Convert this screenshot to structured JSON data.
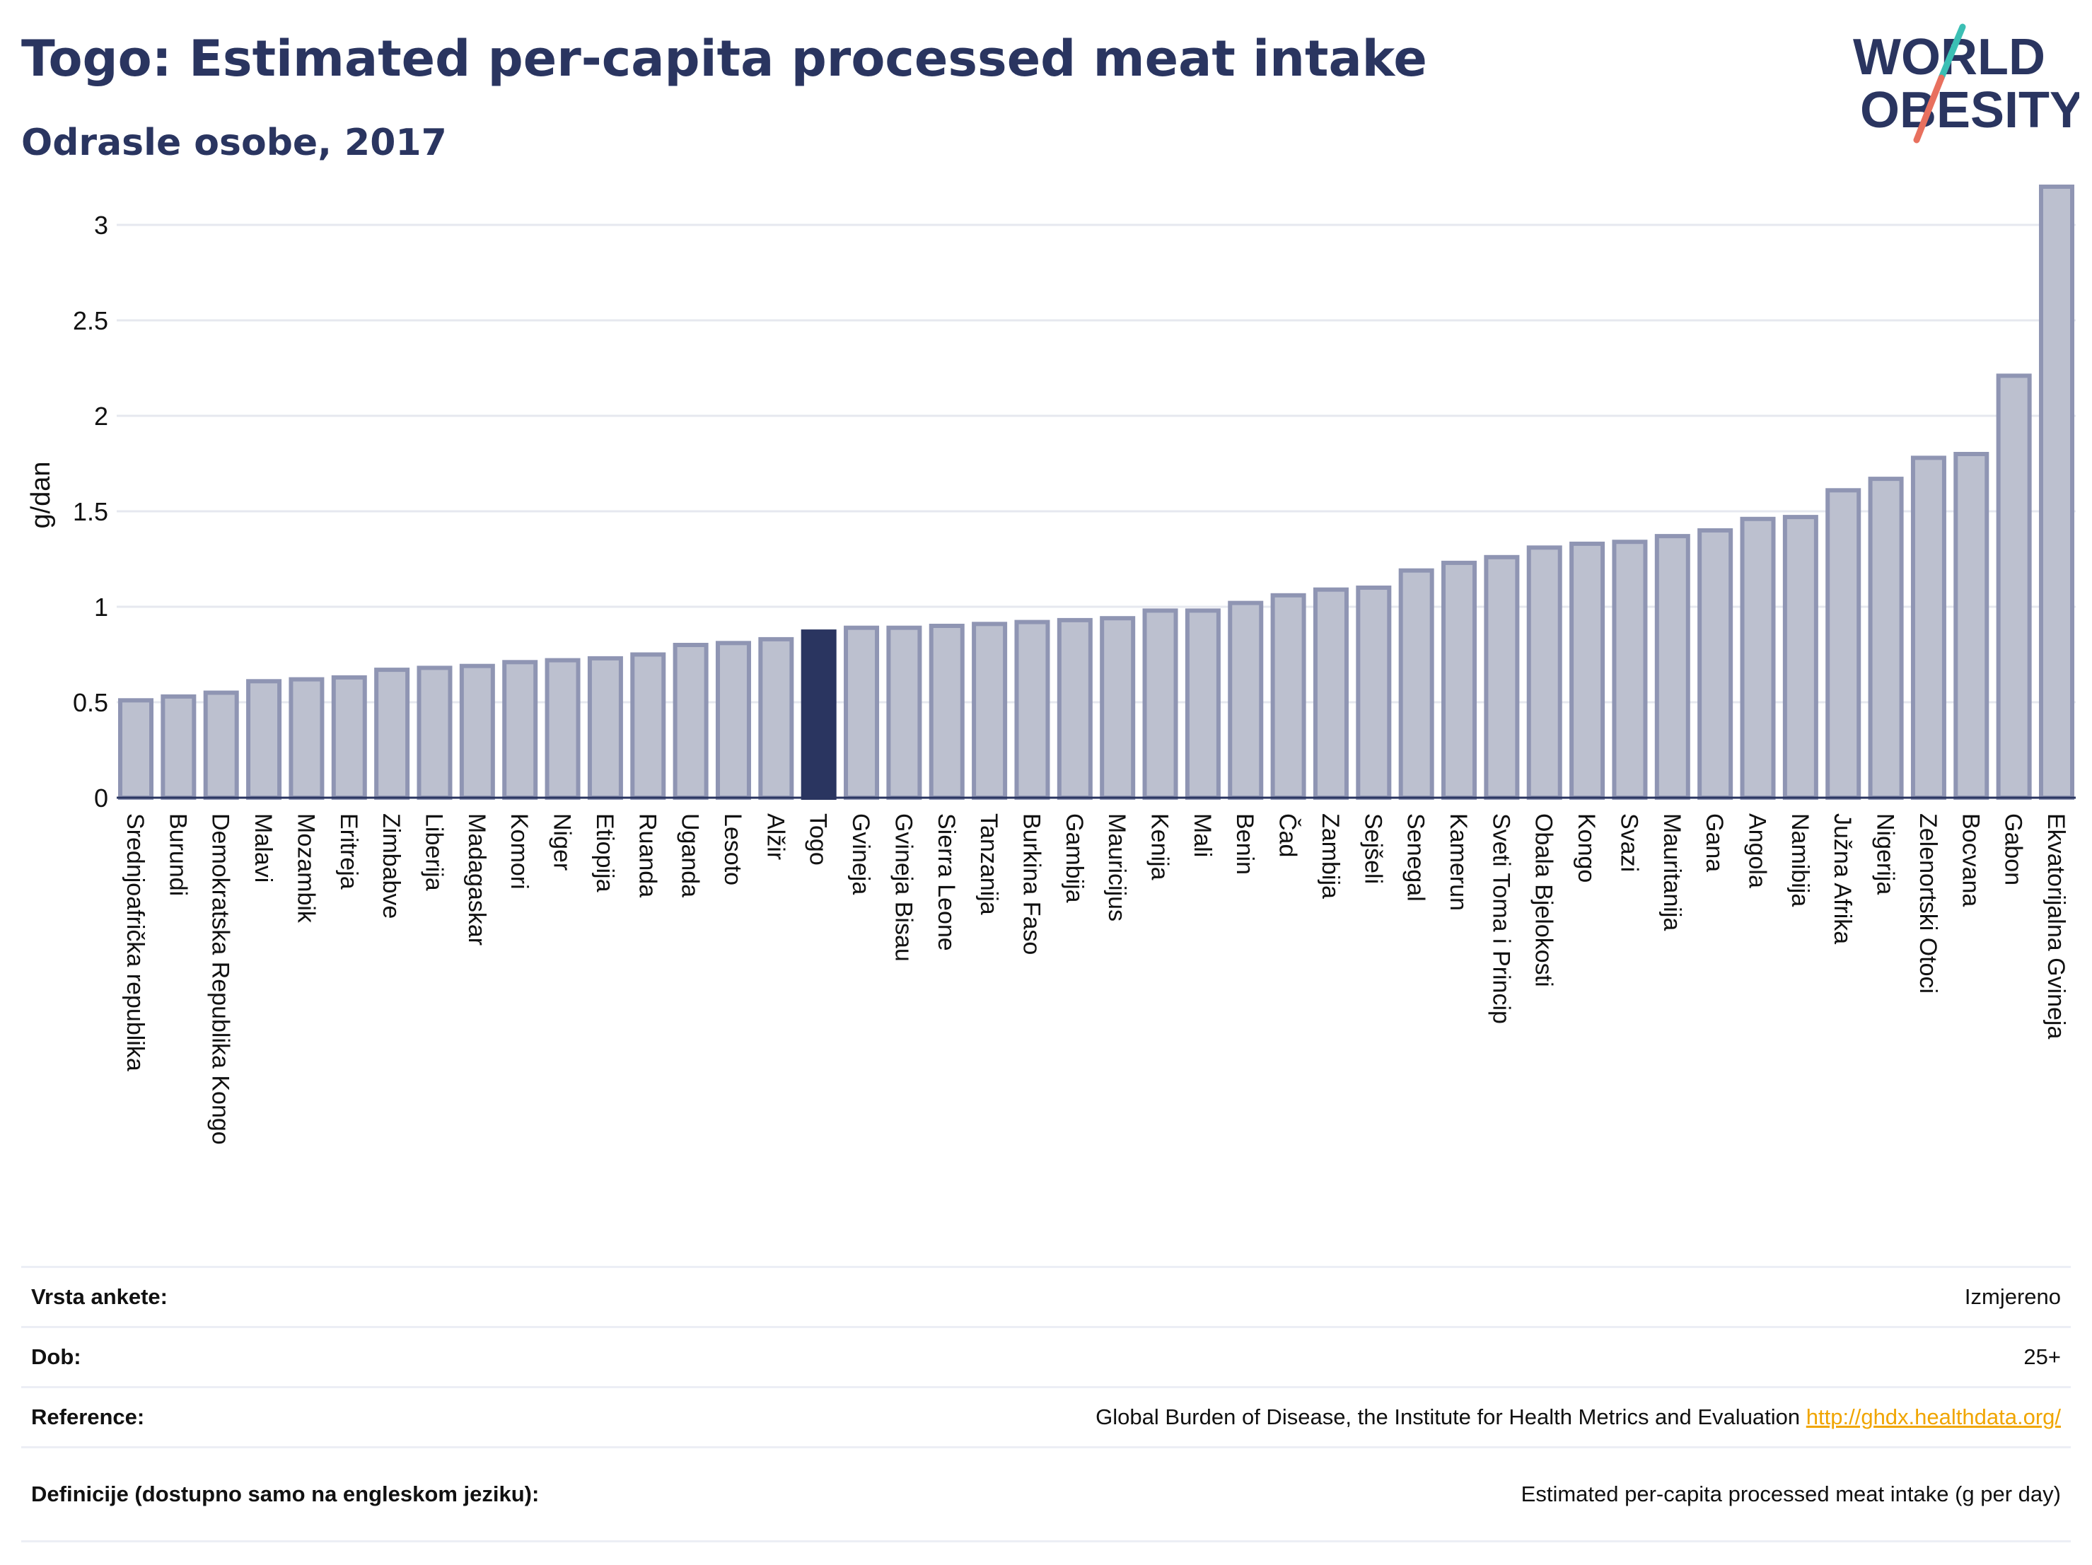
{
  "header": {
    "title": "Togo: Estimated per-capita processed meat intake",
    "subtitle": "Odrasle osobe, 2017"
  },
  "logo": {
    "line1": "WORLD",
    "line2": "OBESITY"
  },
  "colors": {
    "title": "#2a3560",
    "bar_default": "#bcc0cf",
    "bar_border": "#8f95b3",
    "bar_highlight": "#2a3560",
    "grid": "#e6e8ef",
    "logo_teal": "#3bbfb4",
    "logo_red": "#e8705e",
    "link": "#f0a500"
  },
  "chart_data": {
    "type": "bar",
    "ylabel": "g/dan",
    "ylim": [
      0,
      3.2
    ],
    "yticks": [
      "0",
      "0.5",
      "1",
      "1.5",
      "2",
      "2.5",
      "3"
    ],
    "highlight": "Togo",
    "grid": true,
    "categories": [
      "Srednjoafrička republika",
      "Burundi",
      "Demokratska Republika Kongo",
      "Malavi",
      "Mozambik",
      "Eritreja",
      "Zimbabve",
      "Liberija",
      "Madagaskar",
      "Komori",
      "Niger",
      "Etiopija",
      "Ruanda",
      "Uganda",
      "Lesoto",
      "Alžir",
      "Togo",
      "Gvineja",
      "Gvineja Bisau",
      "Sierra Leone",
      "Tanzanija",
      "Burkina Faso",
      "Gambija",
      "Mauricijus",
      "Kenija",
      "Mali",
      "Benin",
      "Čad",
      "Zambija",
      "Sejšeli",
      "Senegal",
      "Kamerun",
      "Sveti Toma i Princip",
      "Obala Bjelokosti",
      "Kongo",
      "Svazi",
      "Mauritanija",
      "Gana",
      "Angola",
      "Namibija",
      "Južna Afrika",
      "Nigerija",
      "Zelenortski Otoci",
      "Bocvana",
      "Gabon",
      "Ekvatorijalna Gvineja"
    ],
    "values": [
      0.51,
      0.53,
      0.55,
      0.61,
      0.62,
      0.63,
      0.67,
      0.68,
      0.69,
      0.71,
      0.72,
      0.73,
      0.75,
      0.8,
      0.81,
      0.83,
      0.87,
      0.89,
      0.89,
      0.9,
      0.91,
      0.92,
      0.93,
      0.94,
      0.98,
      0.98,
      1.02,
      1.06,
      1.09,
      1.1,
      1.19,
      1.23,
      1.26,
      1.31,
      1.33,
      1.34,
      1.37,
      1.4,
      1.46,
      1.47,
      1.61,
      1.67,
      1.78,
      1.8,
      2.21,
      3.2
    ]
  },
  "info": {
    "rows": [
      {
        "label": "Vrsta ankete:",
        "value": "Izmjereno"
      },
      {
        "label": "Dob:",
        "value": "25+"
      },
      {
        "label": "Reference:",
        "value": "Global Burden of Disease, the Institute for Health Metrics and Evaluation",
        "link": "http://ghdx.healthdata.org/"
      },
      {
        "label": "Definicije (dostupno samo na engleskom jeziku):",
        "value": "Estimated per-capita processed meat intake (g per day)"
      }
    ]
  }
}
